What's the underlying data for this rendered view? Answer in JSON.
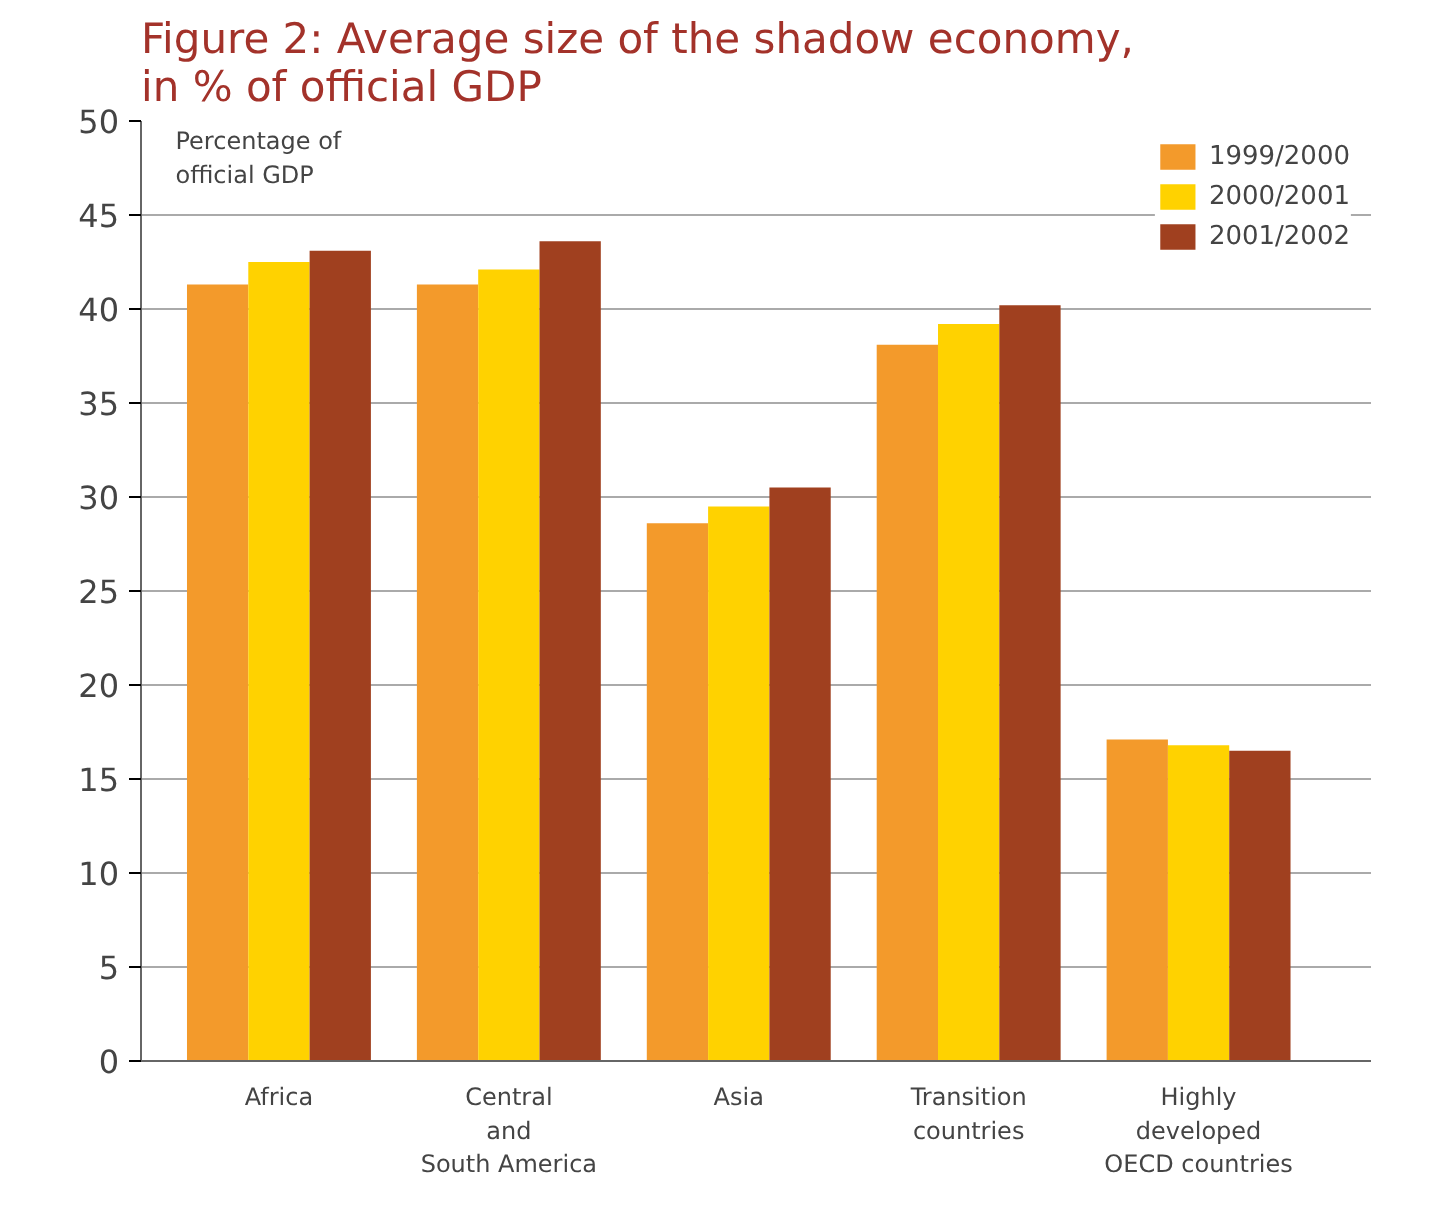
{
  "chart_data": {
    "type": "bar",
    "title": "Figure 2: Average size of the shadow economy,\n        in % of official GDP",
    "ylabel": "Percentage of\nofficial GDP",
    "categories": [
      "Africa",
      "Central\nand\nSouth America",
      "Asia",
      "Transition\ncountries",
      "Highly\ndeveloped\nOECD countries"
    ],
    "series": [
      {
        "name": "1999/2000",
        "color": "#f39a2b",
        "values": [
          41.3,
          41.3,
          28.6,
          38.1,
          17.1
        ]
      },
      {
        "name": "2000/2001",
        "color": "#ffd200",
        "values": [
          42.5,
          42.1,
          29.5,
          39.2,
          16.8
        ]
      },
      {
        "name": "2001/2002",
        "color": "#a0401f",
        "values": [
          43.1,
          43.6,
          30.5,
          40.2,
          16.5
        ]
      }
    ],
    "ylim": [
      0,
      50
    ],
    "yticks": [
      0,
      5,
      10,
      15,
      20,
      25,
      30,
      35,
      40,
      45,
      50
    ],
    "grid": "y",
    "legend": "top right"
  }
}
